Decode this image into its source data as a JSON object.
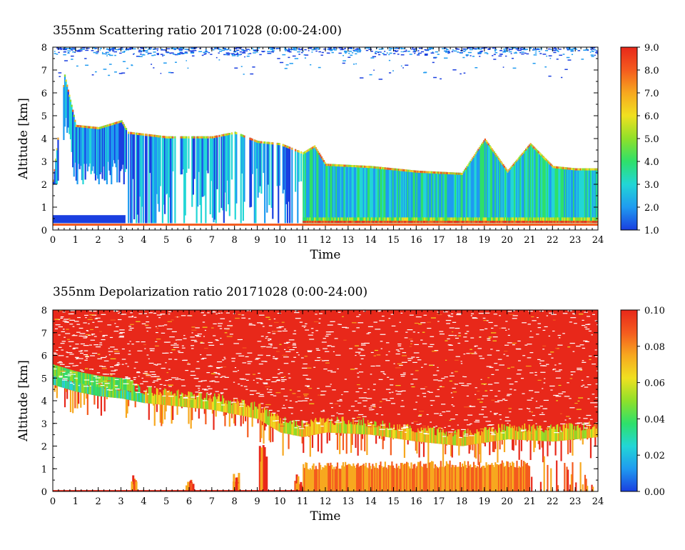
{
  "chart_data": [
    {
      "type": "heatmap",
      "title": "355nm Scattering ratio  20171028 (0:00-24:00)",
      "xlabel": "Time",
      "ylabel": "Altitude [km]",
      "xlim": [
        0,
        24
      ],
      "ylim": [
        0,
        8
      ],
      "x_ticks": [
        "0",
        "1",
        "2",
        "3",
        "4",
        "5",
        "6",
        "7",
        "8",
        "9",
        "10",
        "11",
        "12",
        "13",
        "14",
        "15",
        "16",
        "17",
        "18",
        "19",
        "20",
        "21",
        "22",
        "23",
        "24"
      ],
      "y_ticks": [
        "0",
        "1",
        "2",
        "3",
        "4",
        "5",
        "6",
        "7",
        "8"
      ],
      "colorbar": {
        "range": [
          1.0,
          9.0
        ],
        "tick_labels": [
          "1.0",
          "2.0",
          "3.0",
          "4.0",
          "5.0",
          "6.0",
          "7.0",
          "8.0",
          "9.0"
        ],
        "colormap": [
          "#1a3fe0",
          "#1f9bf0",
          "#22d6d6",
          "#2ee06a",
          "#8fe02a",
          "#f0e020",
          "#f7a81f",
          "#f45b1e",
          "#e8281a"
        ]
      },
      "features": {
        "cloud_top_km": [
          [
            0.0,
            2.2
          ],
          [
            0.5,
            6.8
          ],
          [
            1.0,
            4.6
          ],
          [
            2.0,
            4.5
          ],
          [
            3.0,
            4.8
          ],
          [
            3.3,
            4.3
          ],
          [
            5.0,
            4.1
          ],
          [
            7.0,
            4.1
          ],
          [
            8.0,
            4.3
          ],
          [
            9.0,
            3.9
          ],
          [
            10.0,
            3.8
          ],
          [
            11.0,
            3.4
          ],
          [
            11.5,
            3.7
          ],
          [
            12.0,
            2.9
          ],
          [
            14.0,
            2.8
          ],
          [
            16.0,
            2.6
          ],
          [
            18.0,
            2.5
          ],
          [
            19.0,
            4.0
          ],
          [
            20.0,
            2.6
          ],
          [
            21.0,
            3.8
          ],
          [
            22.0,
            2.8
          ],
          [
            23.0,
            2.7
          ],
          [
            24.0,
            2.7
          ]
        ],
        "surface_layer_top_km": [
          [
            0.0,
            0.65
          ],
          [
            3.2,
            0.6
          ]
        ]
      }
    },
    {
      "type": "heatmap",
      "title": "355nm Depolarization ratio  20171028 (0:00-24:00)",
      "xlabel": "Time",
      "ylabel": "Altitude [km]",
      "xlim": [
        0,
        24
      ],
      "ylim": [
        0,
        8
      ],
      "x_ticks": [
        "0",
        "1",
        "2",
        "3",
        "4",
        "5",
        "6",
        "7",
        "8",
        "9",
        "10",
        "11",
        "12",
        "13",
        "14",
        "15",
        "16",
        "17",
        "18",
        "19",
        "20",
        "21",
        "22",
        "23",
        "24"
      ],
      "y_ticks": [
        "0",
        "1",
        "2",
        "3",
        "4",
        "5",
        "6",
        "7",
        "8"
      ],
      "colorbar": {
        "range": [
          0.0,
          0.1
        ],
        "tick_labels": [
          "0.00",
          "0.02",
          "0.04",
          "0.06",
          "0.08",
          "0.10"
        ],
        "colormap": [
          "#1a3fe0",
          "#1f9bf0",
          "#22d6d6",
          "#2ee06a",
          "#8fe02a",
          "#f0e020",
          "#f7a81f",
          "#f45b1e",
          "#e8281a"
        ]
      },
      "features": {
        "cloud_base_km": [
          [
            0.0,
            4.7
          ],
          [
            1.0,
            4.4
          ],
          [
            2.0,
            4.2
          ],
          [
            3.0,
            4.1
          ],
          [
            4.0,
            3.9
          ],
          [
            5.0,
            3.8
          ],
          [
            6.0,
            3.7
          ],
          [
            7.0,
            3.6
          ],
          [
            8.0,
            3.4
          ],
          [
            9.0,
            3.2
          ],
          [
            10.0,
            2.6
          ],
          [
            11.0,
            2.4
          ],
          [
            12.0,
            2.6
          ],
          [
            14.0,
            2.5
          ],
          [
            16.0,
            2.2
          ],
          [
            18.0,
            2.0
          ],
          [
            20.0,
            2.3
          ],
          [
            22.0,
            2.2
          ],
          [
            24.0,
            2.4
          ]
        ],
        "low_layer_top_km": [
          [
            11.0,
            1.3
          ],
          [
            21.0,
            1.4
          ]
        ]
      }
    }
  ]
}
